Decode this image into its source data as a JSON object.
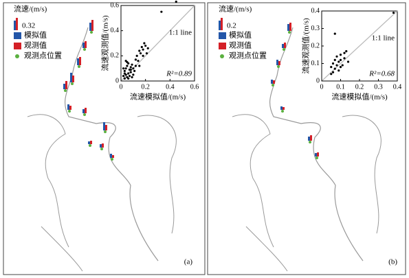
{
  "chart_data": [
    {
      "type": "scatter",
      "panel_label": "(a)",
      "legend_title": "流速/(m/s)",
      "legend_scale": "0.32",
      "legend_items": [
        "模拟值",
        "观测值",
        "观测点位置"
      ],
      "legend_colors": [
        "#2356a8",
        "#d42027",
        "#5bb040"
      ],
      "xlabel": "流速模拟值/(m/s)",
      "ylabel": "流速观测值/(m/s)",
      "ref_label": "1:1 line",
      "r2_label": "R²=0.89",
      "xlim": [
        0,
        0.6
      ],
      "ylim": [
        0,
        0.6
      ],
      "xticks": [
        0,
        0.2,
        0.4,
        0.6
      ],
      "yticks": [
        0,
        0.2,
        0.4,
        0.6
      ],
      "color": "#000000",
      "ref_color": "#bbbbbb",
      "x": [
        0.02,
        0.03,
        0.03,
        0.04,
        0.04,
        0.05,
        0.05,
        0.06,
        0.06,
        0.07,
        0.07,
        0.08,
        0.08,
        0.09,
        0.1,
        0.1,
        0.11,
        0.12,
        0.03,
        0.05,
        0.06,
        0.08,
        0.12,
        0.13,
        0.14,
        0.15,
        0.16,
        0.17,
        0.18,
        0.19,
        0.2,
        0.21,
        0.22,
        0.15,
        0.18,
        0.33,
        0.45,
        0.02,
        0.04,
        0.09
      ],
      "y": [
        0.04,
        0.02,
        0.08,
        0.05,
        0.1,
        0.03,
        0.12,
        0.06,
        0.14,
        0.09,
        0.04,
        0.11,
        0.07,
        0.13,
        0.05,
        0.1,
        0.08,
        0.12,
        0.06,
        0.15,
        0.02,
        0.09,
        0.17,
        0.2,
        0.16,
        0.24,
        0.22,
        0.27,
        0.25,
        0.3,
        0.28,
        0.22,
        0.26,
        0.12,
        0.2,
        0.55,
        0.63,
        0.1,
        0.16,
        0.03
      ]
    },
    {
      "type": "scatter",
      "panel_label": "(b)",
      "legend_title": "流速/(m/s)",
      "legend_scale": "0.2",
      "legend_items": [
        "模拟值",
        "观测值",
        "观测点位置"
      ],
      "legend_colors": [
        "#2356a8",
        "#d42027",
        "#5bb040"
      ],
      "xlabel": "流速模拟值/(m/s)",
      "ylabel": "流速观测值/(m/s)",
      "ref_label": "1:1 line",
      "r2_label": "R²=0.68",
      "xlim": [
        0,
        0.4
      ],
      "ylim": [
        0,
        0.4
      ],
      "xticks": [
        0,
        0.1,
        0.2,
        0.3,
        0.4
      ],
      "yticks": [
        0,
        0.1,
        0.2,
        0.3,
        0.4
      ],
      "color": "#000000",
      "ref_color": "#bbbbbb",
      "x": [
        0.05,
        0.06,
        0.06,
        0.07,
        0.07,
        0.08,
        0.08,
        0.09,
        0.09,
        0.1,
        0.1,
        0.11,
        0.12,
        0.12,
        0.13,
        0.14,
        0.07,
        0.38,
        0.05,
        0.1
      ],
      "y": [
        0.08,
        0.05,
        0.1,
        0.07,
        0.12,
        0.09,
        0.14,
        0.06,
        0.11,
        0.08,
        0.15,
        0.09,
        0.13,
        0.16,
        0.17,
        0.11,
        0.27,
        0.39,
        0.04,
        0.12
      ]
    }
  ]
}
